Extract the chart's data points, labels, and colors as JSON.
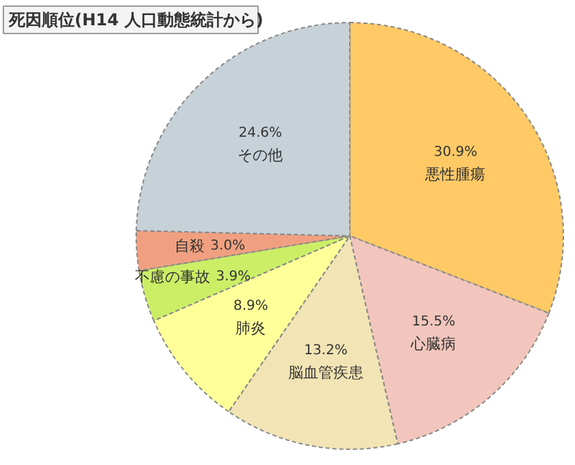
{
  "chart_data": {
    "type": "pie",
    "title": "死因順位(H14 人口動態統計から)",
    "categories": [
      "悪性腫瘍",
      "心臓病",
      "脳血管疾患",
      "肺炎",
      "不慮の事故",
      "自殺",
      "その他"
    ],
    "values": [
      30.9,
      15.5,
      13.2,
      8.9,
      3.9,
      3.0,
      24.6
    ],
    "colors": [
      "#ffc966",
      "#f2c6bc",
      "#f2e4b4",
      "#ffff99",
      "#ccee66",
      "#f0a080",
      "#c6d1d8"
    ],
    "value_labels": [
      "30.9%",
      "15.5%",
      "13.2%",
      "8.9%",
      "3.9%",
      "3.0%",
      "24.6%"
    ]
  }
}
